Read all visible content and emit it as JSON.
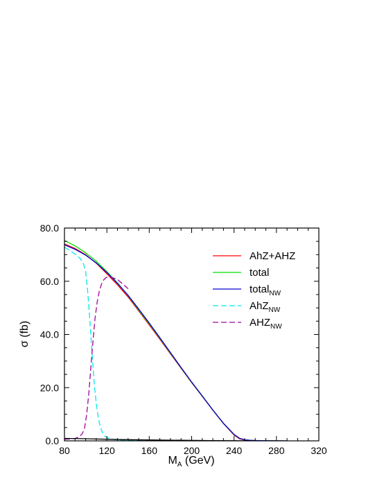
{
  "chart_data": {
    "type": "line",
    "title": "",
    "xlabel": {
      "main": "M",
      "sub": "A",
      "suffix": " (GeV)"
    },
    "ylabel": "σ (fb)",
    "xlim": [
      80,
      320
    ],
    "ylim": [
      0,
      80
    ],
    "xticks": [
      "80",
      "120",
      "160",
      "200",
      "240",
      "280",
      "320"
    ],
    "yticks": [
      "0.0",
      "20.0",
      "40.0",
      "60.0",
      "80.0"
    ],
    "grid": false,
    "legend_position": "top-right",
    "series": [
      {
        "name": "AhZ+AHZ",
        "name_sub": "",
        "color": "#ff0000",
        "dash": "solid",
        "x": [
          80,
          90,
          100,
          110,
          120,
          130,
          140,
          150,
          160,
          170,
          180,
          190,
          200,
          210,
          220,
          230,
          240,
          245,
          250,
          255,
          260,
          270,
          280,
          290
        ],
        "y": [
          74.0,
          72.3,
          70.0,
          66.8,
          62.8,
          58.6,
          54.1,
          48.9,
          43.6,
          38.2,
          32.7,
          27.3,
          21.9,
          16.7,
          11.5,
          6.5,
          2.2,
          0.8,
          0.3,
          0.15,
          0.1,
          0.05,
          0.02,
          0.0
        ]
      },
      {
        "name": "total",
        "name_sub": "",
        "color": "#00e000",
        "dash": "solid",
        "x": [
          80,
          90,
          100,
          110,
          120,
          130,
          140,
          150,
          160,
          170,
          180,
          190,
          200,
          210,
          220,
          230,
          240,
          245,
          250,
          255,
          260,
          270,
          280,
          290
        ],
        "y": [
          75.3,
          73.3,
          70.7,
          67.5,
          63.6,
          59.4,
          54.6,
          49.3,
          44.0,
          38.6,
          33.0,
          27.5,
          22.0,
          16.8,
          11.6,
          6.6,
          2.4,
          1.0,
          0.4,
          0.2,
          0.12,
          0.06,
          0.03,
          0.0
        ]
      },
      {
        "name": "total",
        "name_sub": "NW",
        "color": "#0000cc",
        "dash": "solid",
        "x": [
          80,
          90,
          100,
          110,
          120,
          130,
          140,
          150,
          160,
          170,
          180,
          190,
          200,
          210,
          220,
          230,
          240,
          245,
          250,
          255,
          260,
          270,
          280,
          290
        ],
        "y": [
          73.7,
          72.0,
          69.8,
          66.9,
          63.3,
          59.2,
          54.7,
          49.6,
          44.3,
          38.8,
          33.2,
          27.6,
          22.1,
          16.9,
          11.6,
          6.6,
          2.4,
          1.0,
          0.4,
          0.2,
          0.12,
          0.06,
          0.03,
          0.0
        ]
      },
      {
        "name": "AhZ",
        "name_sub": "NW",
        "color": "#00e8e8",
        "dash": "dashed",
        "x": [
          80,
          85,
          90,
          95,
          98,
          100,
          102,
          104,
          106,
          108,
          110,
          112,
          114,
          116,
          118,
          120,
          125,
          130,
          140,
          150,
          160
        ],
        "y": [
          72.8,
          71.6,
          70.2,
          68.5,
          66.5,
          63.5,
          56.0,
          45.0,
          33.0,
          22.0,
          14.0,
          8.5,
          5.0,
          3.0,
          1.8,
          1.2,
          0.6,
          0.4,
          0.2,
          0.1,
          0.0
        ]
      },
      {
        "name": "AHZ",
        "name_sub": "NW",
        "color": "#a000a0",
        "dash": "dashed",
        "x": [
          80,
          85,
          90,
          94,
          97,
          99,
          101,
          103,
          105,
          107,
          109,
          111,
          113,
          115,
          117,
          119,
          120,
          122,
          125,
          130,
          140
        ],
        "y": [
          0.6,
          0.7,
          0.9,
          1.5,
          2.8,
          5.0,
          10.0,
          18.0,
          28.0,
          38.0,
          46.5,
          52.5,
          56.5,
          59.0,
          60.5,
          61.3,
          61.5,
          61.6,
          61.4,
          60.7,
          57.2
        ]
      },
      {
        "name": "",
        "name_sub": "",
        "color": "#000000",
        "dash": "solid",
        "x": [
          80,
          100,
          120,
          140,
          160,
          180,
          200,
          220,
          240,
          250,
          260
        ],
        "y": [
          0.9,
          0.8,
          0.6,
          0.45,
          0.35,
          0.25,
          0.18,
          0.1,
          0.05,
          0.02,
          0.0
        ]
      }
    ]
  }
}
